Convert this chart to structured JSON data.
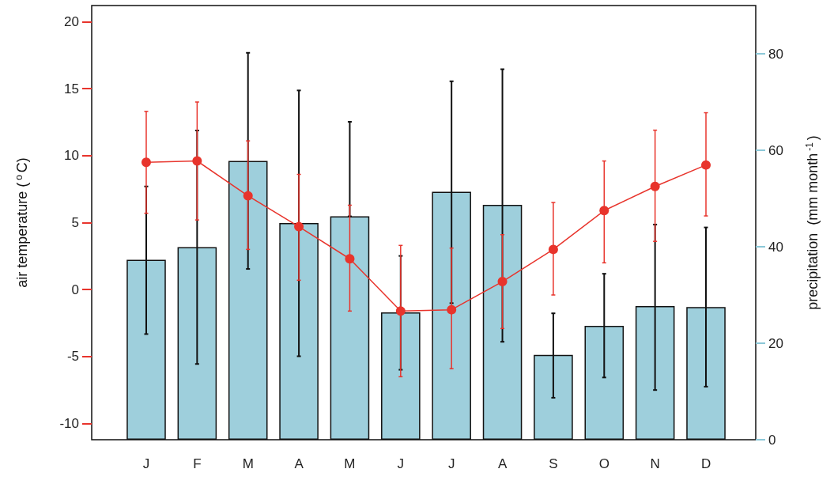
{
  "chart_data": {
    "type": "bar",
    "categories": [
      "J",
      "F",
      "M",
      "A",
      "M",
      "J",
      "J",
      "A",
      "S",
      "O",
      "N",
      "D"
    ],
    "ylabel": "air temperature ($^{o}$C)",
    "y2label": "precipitation  (mm month$^{-1}$)",
    "ylim": [
      -11.2,
      21.2
    ],
    "yticks": [
      -10,
      -5,
      0,
      5,
      10,
      15,
      20
    ],
    "y2lim": [
      0,
      90
    ],
    "y2ticks": [
      0,
      20,
      40,
      60,
      80
    ],
    "grid": false,
    "marker": "circle",
    "line_style": "solid",
    "series": [
      {
        "axis": "y2",
        "color": "#9ecfdc",
        "values": [
          37.3,
          39.9,
          57.8,
          44.9,
          46.3,
          26.4,
          51.4,
          48.7,
          17.6,
          23.6,
          27.7,
          27.5
        ],
        "errors": [
          [
            21.9,
            52.5
          ],
          [
            15.7,
            64.1
          ],
          [
            35.4,
            80.2
          ],
          [
            17.3,
            72.4
          ],
          [
            46.3,
            65.9
          ],
          [
            14.5,
            38.1
          ],
          [
            28.3,
            74.3
          ],
          [
            20.3,
            76.8
          ],
          [
            8.7,
            26.2
          ],
          [
            12.9,
            34.4
          ],
          [
            10.3,
            44.6
          ],
          [
            11.0,
            44.0
          ]
        ]
      },
      {
        "type": "line",
        "axis": "y",
        "color": "#e8342c",
        "values": [
          9.5,
          9.6,
          7.0,
          4.7,
          2.3,
          -1.6,
          -1.5,
          0.6,
          3.0,
          5.9,
          7.7,
          9.3
        ],
        "errors": [
          [
            5.7,
            13.3
          ],
          [
            5.2,
            14.0
          ],
          [
            3.0,
            11.1
          ],
          [
            0.7,
            8.6
          ],
          [
            -1.6,
            6.3
          ],
          [
            -6.5,
            3.3
          ],
          [
            -5.9,
            3.1
          ],
          [
            -2.9,
            4.1
          ],
          [
            -0.4,
            6.5
          ],
          [
            2.0,
            9.6
          ],
          [
            3.6,
            11.9
          ],
          [
            5.5,
            13.2
          ]
        ]
      }
    ]
  }
}
